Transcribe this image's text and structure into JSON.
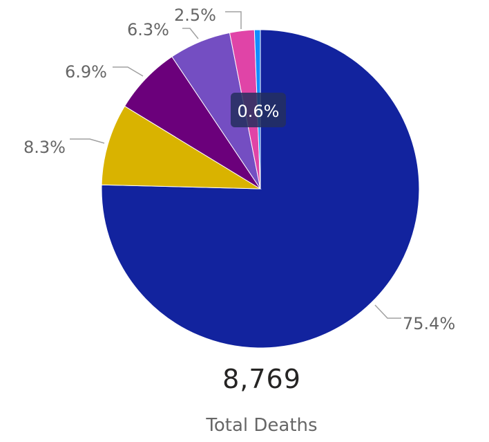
{
  "chart_data": {
    "type": "pie",
    "slices": [
      {
        "label": "75.4%",
        "value": 75.4,
        "color": "#12239E"
      },
      {
        "label": "8.3%",
        "value": 8.3,
        "color": "#D9B300"
      },
      {
        "label": "6.9%",
        "value": 6.9,
        "color": "#6B007B"
      },
      {
        "label": "6.3%",
        "value": 6.3,
        "color": "#744EC2"
      },
      {
        "label": "2.5%",
        "value": 2.5,
        "color": "#E044A7"
      },
      {
        "label": "0.6%",
        "value": 0.6,
        "color": "#118DFF"
      }
    ],
    "highlighted_slice_label": "0.6%"
  },
  "card": {
    "value": "8,769",
    "label": "Total Deaths"
  },
  "colors": {
    "tooltip_bg": "#252F5E",
    "label_text": "#666666",
    "leader_line": "#A0A0A0"
  }
}
